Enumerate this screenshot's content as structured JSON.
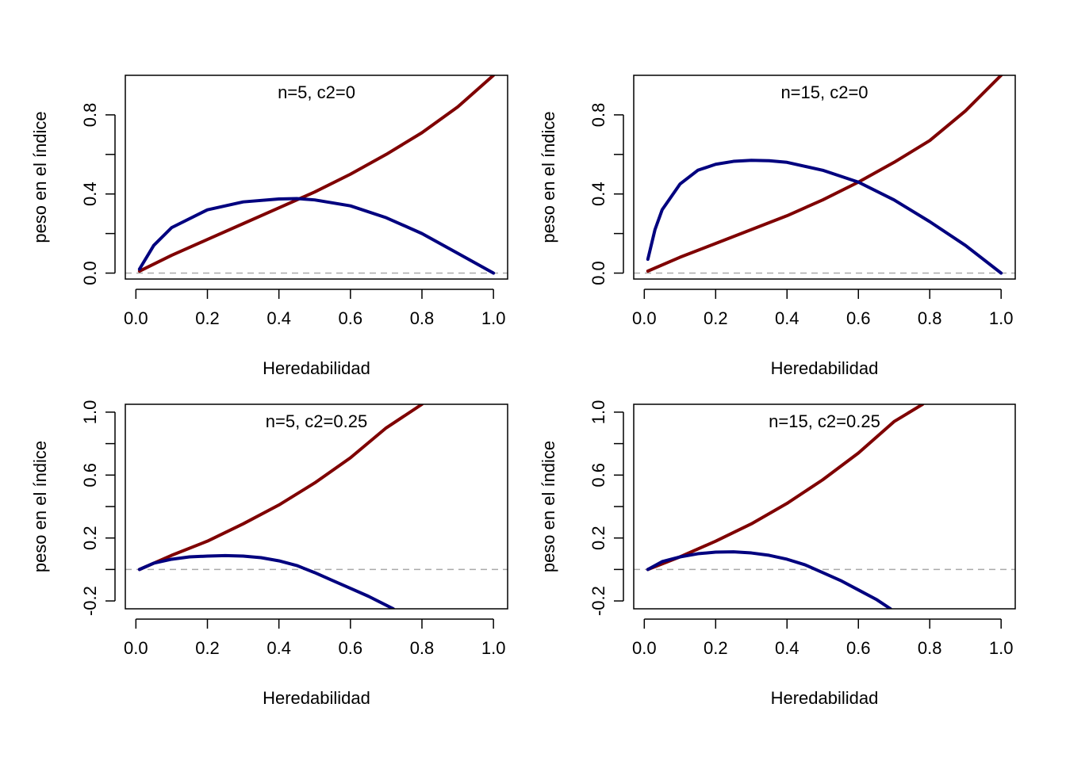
{
  "chart_data": [
    {
      "type": "line",
      "panel_label": "n=5, c2=0",
      "xlabel": "Heredabilidad",
      "ylabel": "peso en el índice",
      "xlim": [
        0.0,
        1.0
      ],
      "ylim": [
        -0.03,
        1.0
      ],
      "x_ticks": [
        "0.0",
        "0.2",
        "0.4",
        "0.6",
        "0.8",
        "1.0"
      ],
      "y_ticks": [
        "0.0",
        "0.4",
        "0.8"
      ],
      "y_minor_ticks": [
        0.0,
        0.2,
        0.4,
        0.6,
        0.8
      ],
      "reference_line_y": 0,
      "grid": false,
      "series": [
        {
          "color": "#7f0000",
          "x": [
            0.01,
            0.1,
            0.2,
            0.3,
            0.4,
            0.5,
            0.6,
            0.7,
            0.8,
            0.9,
            1.0
          ],
          "y": [
            0.01,
            0.09,
            0.17,
            0.25,
            0.33,
            0.41,
            0.5,
            0.6,
            0.71,
            0.84,
            1.0
          ]
        },
        {
          "color": "#00007f",
          "x": [
            0.01,
            0.05,
            0.1,
            0.2,
            0.3,
            0.4,
            0.45,
            0.5,
            0.6,
            0.7,
            0.8,
            0.9,
            1.0
          ],
          "y": [
            0.02,
            0.14,
            0.23,
            0.32,
            0.36,
            0.375,
            0.377,
            0.37,
            0.34,
            0.28,
            0.2,
            0.1,
            0.0
          ]
        }
      ]
    },
    {
      "type": "line",
      "panel_label": "n=15, c2=0",
      "xlabel": "Heredabilidad",
      "ylabel": "peso en el índice",
      "xlim": [
        0.0,
        1.0
      ],
      "ylim": [
        -0.03,
        1.0
      ],
      "x_ticks": [
        "0.0",
        "0.2",
        "0.4",
        "0.6",
        "0.8",
        "1.0"
      ],
      "y_ticks": [
        "0.0",
        "0.4",
        "0.8"
      ],
      "y_minor_ticks": [
        0.0,
        0.2,
        0.4,
        0.6,
        0.8
      ],
      "reference_line_y": 0,
      "grid": false,
      "series": [
        {
          "color": "#7f0000",
          "x": [
            0.01,
            0.1,
            0.2,
            0.3,
            0.4,
            0.5,
            0.6,
            0.7,
            0.8,
            0.9,
            1.0
          ],
          "y": [
            0.01,
            0.08,
            0.15,
            0.22,
            0.29,
            0.37,
            0.46,
            0.56,
            0.67,
            0.82,
            1.0
          ]
        },
        {
          "color": "#00007f",
          "x": [
            0.01,
            0.03,
            0.05,
            0.1,
            0.15,
            0.2,
            0.25,
            0.3,
            0.35,
            0.4,
            0.5,
            0.6,
            0.7,
            0.8,
            0.9,
            1.0
          ],
          "y": [
            0.07,
            0.22,
            0.32,
            0.45,
            0.52,
            0.55,
            0.565,
            0.57,
            0.568,
            0.56,
            0.52,
            0.46,
            0.37,
            0.26,
            0.14,
            0.0
          ]
        }
      ]
    },
    {
      "type": "line",
      "panel_label": "n=5, c2=0.25",
      "xlabel": "Heredabilidad",
      "ylabel": "peso en el índice",
      "xlim": [
        0.0,
        1.0
      ],
      "ylim": [
        -0.25,
        1.05
      ],
      "x_ticks": [
        "0.0",
        "0.2",
        "0.4",
        "0.6",
        "0.8",
        "1.0"
      ],
      "y_ticks": [
        "-0.2",
        "0.2",
        "0.6",
        "1.0"
      ],
      "y_minor_ticks": [
        -0.2,
        0.0,
        0.2,
        0.4,
        0.6,
        0.8,
        1.0
      ],
      "reference_line_y": 0,
      "grid": false,
      "series": [
        {
          "color": "#7f0000",
          "x": [
            0.01,
            0.1,
            0.2,
            0.3,
            0.4,
            0.5,
            0.6,
            0.7,
            0.8
          ],
          "y": [
            0.0,
            0.09,
            0.18,
            0.29,
            0.41,
            0.55,
            0.71,
            0.9,
            1.05
          ]
        },
        {
          "color": "#00007f",
          "x": [
            0.01,
            0.05,
            0.1,
            0.15,
            0.2,
            0.25,
            0.3,
            0.35,
            0.4,
            0.45,
            0.5,
            0.55,
            0.6,
            0.65,
            0.72
          ],
          "y": [
            0.0,
            0.04,
            0.065,
            0.08,
            0.085,
            0.088,
            0.085,
            0.075,
            0.055,
            0.025,
            -0.02,
            -0.07,
            -0.12,
            -0.17,
            -0.25
          ]
        }
      ]
    },
    {
      "type": "line",
      "panel_label": "n=15, c2=0.25",
      "xlabel": "Heredabilidad",
      "ylabel": "peso en el índice",
      "xlim": [
        0.0,
        1.0
      ],
      "ylim": [
        -0.25,
        1.05
      ],
      "x_ticks": [
        "0.0",
        "0.2",
        "0.4",
        "0.6",
        "0.8",
        "1.0"
      ],
      "y_ticks": [
        "-0.2",
        "0.2",
        "0.6",
        "1.0"
      ],
      "y_minor_ticks": [
        -0.2,
        0.0,
        0.2,
        0.4,
        0.6,
        0.8,
        1.0
      ],
      "reference_line_y": 0,
      "grid": false,
      "series": [
        {
          "color": "#7f0000",
          "x": [
            0.01,
            0.1,
            0.2,
            0.3,
            0.4,
            0.5,
            0.6,
            0.7,
            0.78
          ],
          "y": [
            0.0,
            0.08,
            0.18,
            0.29,
            0.42,
            0.57,
            0.74,
            0.94,
            1.05
          ]
        },
        {
          "color": "#00007f",
          "x": [
            0.01,
            0.05,
            0.1,
            0.15,
            0.2,
            0.25,
            0.3,
            0.35,
            0.4,
            0.45,
            0.5,
            0.55,
            0.6,
            0.65,
            0.69
          ],
          "y": [
            0.0,
            0.05,
            0.08,
            0.1,
            0.11,
            0.112,
            0.105,
            0.09,
            0.065,
            0.03,
            -0.02,
            -0.07,
            -0.13,
            -0.19,
            -0.25
          ]
        }
      ]
    }
  ]
}
